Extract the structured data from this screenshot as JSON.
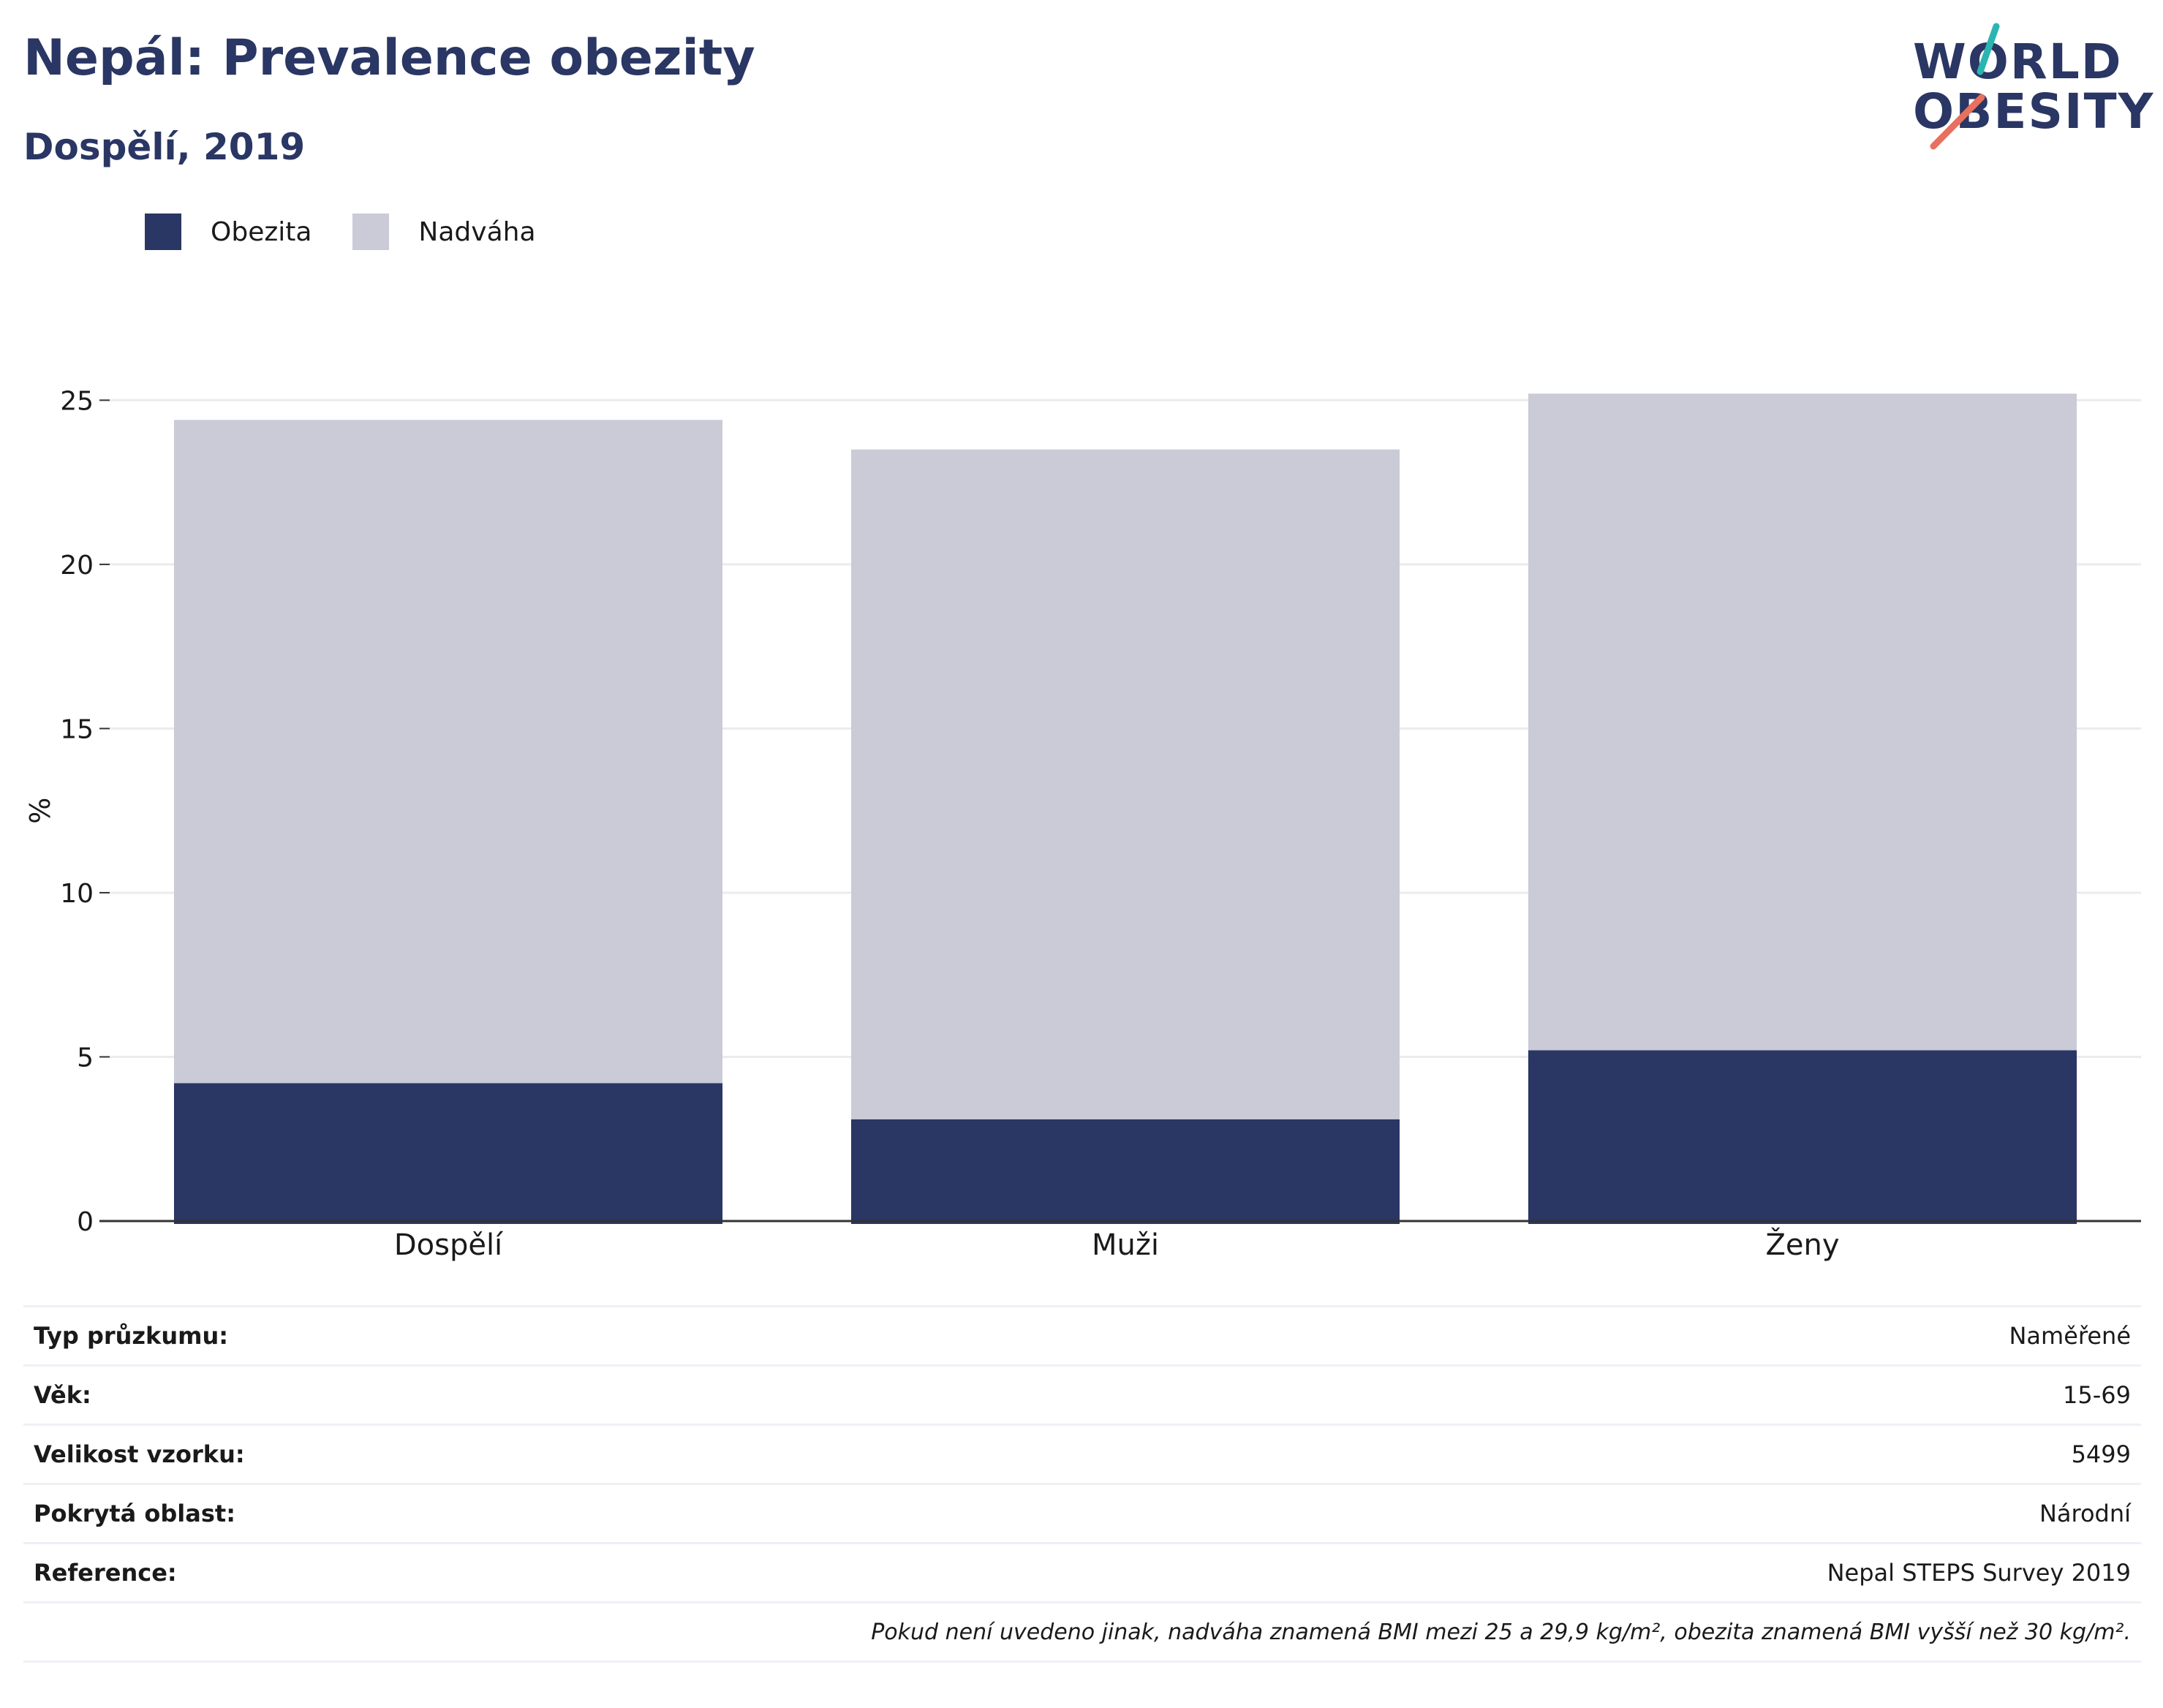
{
  "header": {
    "title": "Nepál: Prevalence obezity",
    "subtitle": "Dospělí, 2019"
  },
  "logo": {
    "line1": "WORLD",
    "line2": "OBESITY",
    "colors": {
      "text": "#2a3663",
      "teal": "#2bb5b0",
      "coral": "#e8705e"
    }
  },
  "legend": {
    "items": [
      {
        "label": "Obezita",
        "color": "#2a3663"
      },
      {
        "label": "Nadváha",
        "color": "#cacbd7"
      }
    ]
  },
  "chart_data": {
    "type": "bar",
    "stacked": true,
    "categories": [
      "Dospělí",
      "Muži",
      "Ženy"
    ],
    "series": [
      {
        "name": "Obezita",
        "values": [
          4.2,
          3.1,
          5.2
        ],
        "color": "#2a3663"
      },
      {
        "name": "Nadváha",
        "values": [
          20.2,
          20.4,
          20.0
        ],
        "color": "#cacbd7"
      }
    ],
    "ylabel": "%",
    "xlabel": "",
    "ylim": [
      0,
      26.5
    ],
    "yticks": [
      0,
      5,
      10,
      15,
      20,
      25
    ],
    "grid": true,
    "legend_position": "top-left"
  },
  "info": {
    "rows": [
      {
        "key": "Typ průzkumu:",
        "value": "Naměřené"
      },
      {
        "key": "Věk:",
        "value": "15-69"
      },
      {
        "key": "Velikost vzorku:",
        "value": "5499"
      },
      {
        "key": "Pokrytá oblast:",
        "value": "Národní"
      },
      {
        "key": "Reference:",
        "value": "Nepal STEPS Survey 2019"
      }
    ],
    "note": "Pokud není uvedeno jinak, nadváha znamená BMI mezi 25 a 29,9 kg/m², obezita znamená BMI vyšší než 30 kg/m²."
  }
}
